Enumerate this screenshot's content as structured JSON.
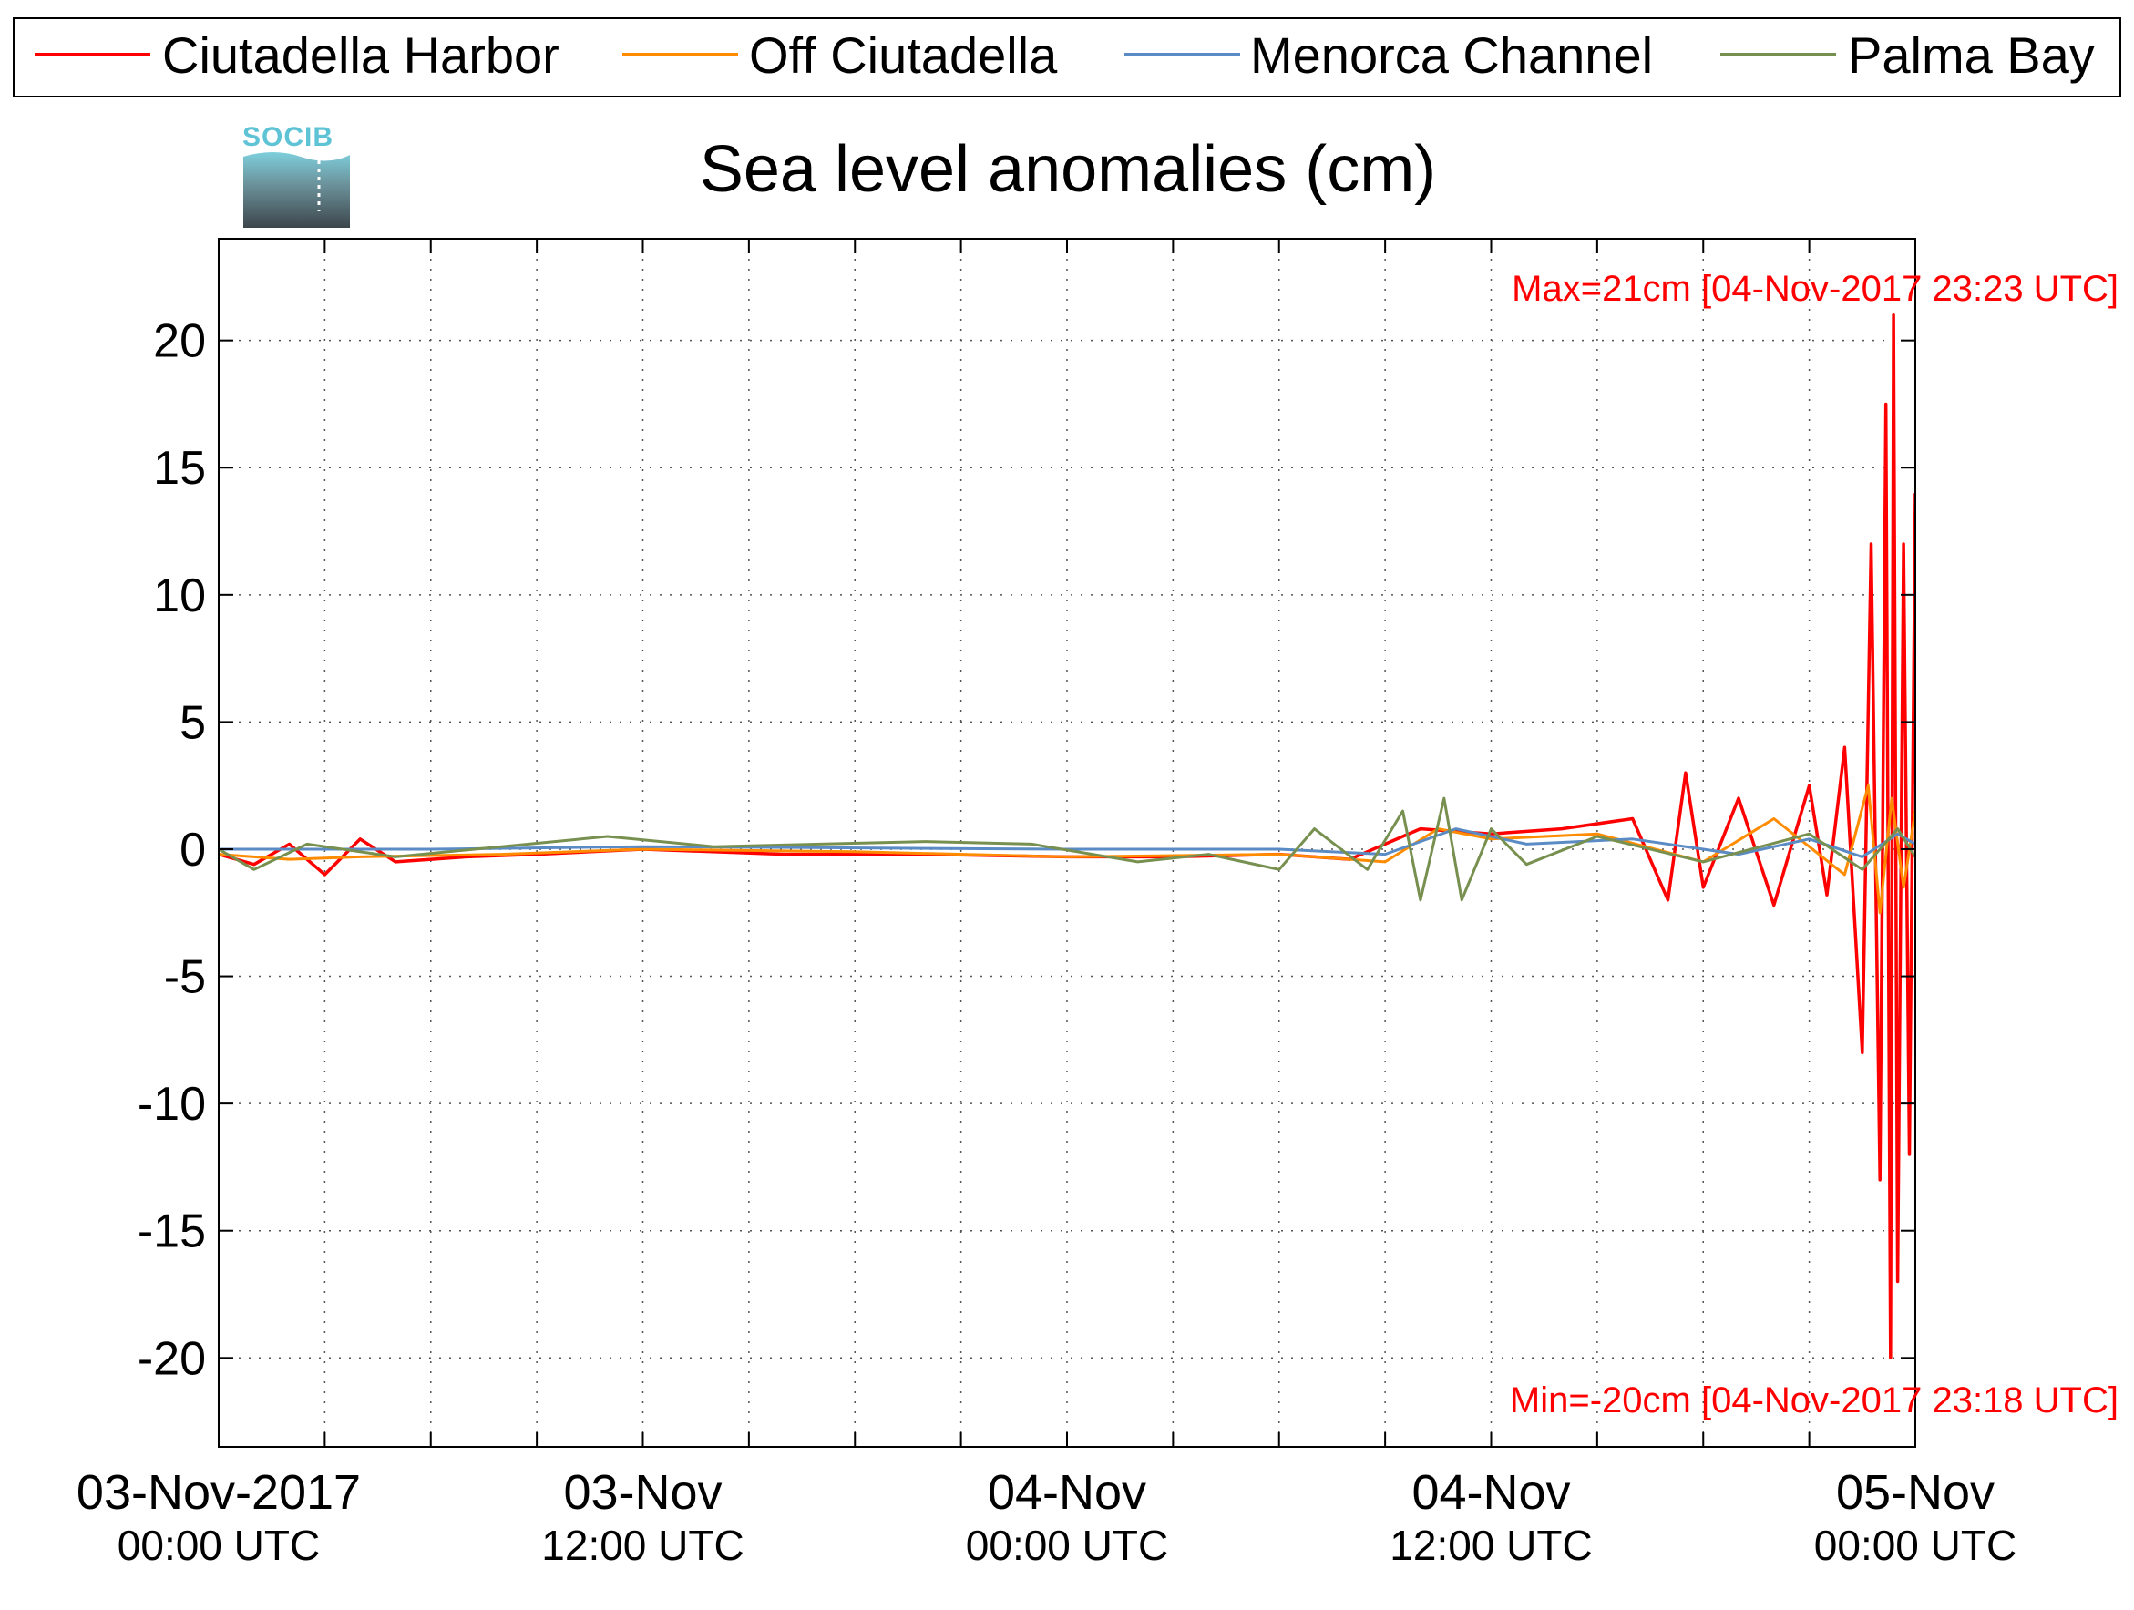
{
  "chart_data": {
    "type": "line",
    "title": "Sea level anomalies (cm)",
    "logo_text": "SOCIB",
    "ylim": [
      -23.5,
      24
    ],
    "xlim": [
      "2017-11-03T00:00Z",
      "2017-11-05T00:00Z"
    ],
    "y_ticks": [
      20,
      15,
      10,
      5,
      0,
      -5,
      -10,
      -15,
      -20
    ],
    "y_tick_labels": [
      "20",
      "15",
      "10",
      "5",
      "0",
      "-5",
      "-10",
      "-15",
      "-20"
    ],
    "x_ticks": [
      {
        "time": "2017-11-03T00:00Z",
        "date_label": "03-Nov-2017",
        "time_label": "00:00 UTC"
      },
      {
        "time": "2017-11-03T12:00Z",
        "date_label": "03-Nov",
        "time_label": "12:00 UTC"
      },
      {
        "time": "2017-11-04T00:00Z",
        "date_label": "04-Nov",
        "time_label": "00:00 UTC"
      },
      {
        "time": "2017-11-04T12:00Z",
        "date_label": "04-Nov",
        "time_label": "12:00 UTC"
      },
      {
        "time": "2017-11-05T00:00Z",
        "date_label": "05-Nov",
        "time_label": "00:00 UTC"
      }
    ],
    "grid": true,
    "legend_placement": "top",
    "annotations": {
      "max": {
        "label": "Max=21cm [04-Nov-2017 23:23 UTC]",
        "value": 21,
        "time": "2017-11-04T23:23Z"
      },
      "min": {
        "label": "Min=-20cm [04-Nov-2017 23:18 UTC]",
        "value": -20,
        "time": "2017-11-04T23:18Z"
      }
    },
    "series": [
      {
        "name": "Ciutadella Harbor",
        "color": "#ff0000",
        "points": [
          [
            "2017-11-03T00:00Z",
            -0.2
          ],
          [
            "2017-11-03T01:00Z",
            -0.6
          ],
          [
            "2017-11-03T02:00Z",
            0.2
          ],
          [
            "2017-11-03T03:00Z",
            -1.0
          ],
          [
            "2017-11-03T04:00Z",
            0.4
          ],
          [
            "2017-11-03T05:00Z",
            -0.5
          ],
          [
            "2017-11-03T07:00Z",
            -0.3
          ],
          [
            "2017-11-03T09:00Z",
            -0.2
          ],
          [
            "2017-11-03T12:00Z",
            0.0
          ],
          [
            "2017-11-03T16:00Z",
            -0.2
          ],
          [
            "2017-11-03T20:00Z",
            -0.2
          ],
          [
            "2017-11-04T00:00Z",
            -0.3
          ],
          [
            "2017-11-04T03:00Z",
            -0.3
          ],
          [
            "2017-11-04T06:00Z",
            -0.2
          ],
          [
            "2017-11-04T08:00Z",
            -0.4
          ],
          [
            "2017-11-04T10:00Z",
            0.8
          ],
          [
            "2017-11-04T12:00Z",
            0.6
          ],
          [
            "2017-11-04T14:00Z",
            0.8
          ],
          [
            "2017-11-04T16:00Z",
            1.2
          ],
          [
            "2017-11-04T17:00Z",
            -2.0
          ],
          [
            "2017-11-04T17:30Z",
            3.0
          ],
          [
            "2017-11-04T18:00Z",
            -1.5
          ],
          [
            "2017-11-04T19:00Z",
            2.0
          ],
          [
            "2017-11-04T20:00Z",
            -2.2
          ],
          [
            "2017-11-04T21:00Z",
            2.5
          ],
          [
            "2017-11-04T21:30Z",
            -1.8
          ],
          [
            "2017-11-04T22:00Z",
            4.0
          ],
          [
            "2017-11-04T22:30Z",
            -8.0
          ],
          [
            "2017-11-04T22:45Z",
            12.0
          ],
          [
            "2017-11-04T23:00Z",
            -13.0
          ],
          [
            "2017-11-04T23:10Z",
            17.5
          ],
          [
            "2017-11-04T23:18Z",
            -20.0
          ],
          [
            "2017-11-04T23:23Z",
            21.0
          ],
          [
            "2017-11-04T23:30Z",
            -17.0
          ],
          [
            "2017-11-04T23:40Z",
            12.0
          ],
          [
            "2017-11-04T23:50Z",
            -12.0
          ],
          [
            "2017-11-05T00:00Z",
            14.0
          ]
        ]
      },
      {
        "name": "Off Ciutadella",
        "color": "#ff8c00",
        "points": [
          [
            "2017-11-03T00:00Z",
            -0.2
          ],
          [
            "2017-11-03T02:00Z",
            -0.4
          ],
          [
            "2017-11-03T04:00Z",
            -0.3
          ],
          [
            "2017-11-03T08:00Z",
            -0.2
          ],
          [
            "2017-11-03T12:00Z",
            0.0
          ],
          [
            "2017-11-03T18:00Z",
            -0.1
          ],
          [
            "2017-11-04T00:00Z",
            -0.3
          ],
          [
            "2017-11-04T06:00Z",
            -0.2
          ],
          [
            "2017-11-04T09:00Z",
            -0.5
          ],
          [
            "2017-11-04T10:30Z",
            0.8
          ],
          [
            "2017-11-04T12:00Z",
            0.4
          ],
          [
            "2017-11-04T15:00Z",
            0.6
          ],
          [
            "2017-11-04T18:00Z",
            -0.5
          ],
          [
            "2017-11-04T20:00Z",
            1.2
          ],
          [
            "2017-11-04T22:00Z",
            -1.0
          ],
          [
            "2017-11-04T22:40Z",
            2.5
          ],
          [
            "2017-11-04T23:00Z",
            -2.5
          ],
          [
            "2017-11-04T23:20Z",
            2.0
          ],
          [
            "2017-11-04T23:40Z",
            -1.5
          ],
          [
            "2017-11-05T00:00Z",
            1.5
          ]
        ]
      },
      {
        "name": "Menorca Channel",
        "color": "#5b8bc4",
        "points": [
          [
            "2017-11-03T00:00Z",
            0.0
          ],
          [
            "2017-11-03T06:00Z",
            0.0
          ],
          [
            "2017-11-03T12:00Z",
            0.1
          ],
          [
            "2017-11-04T00:00Z",
            0.0
          ],
          [
            "2017-11-04T06:00Z",
            0.0
          ],
          [
            "2017-11-04T09:00Z",
            -0.2
          ],
          [
            "2017-11-04T11:00Z",
            0.8
          ],
          [
            "2017-11-04T13:00Z",
            0.2
          ],
          [
            "2017-11-04T16:00Z",
            0.4
          ],
          [
            "2017-11-04T19:00Z",
            -0.2
          ],
          [
            "2017-11-04T21:00Z",
            0.4
          ],
          [
            "2017-11-04T22:30Z",
            -0.3
          ],
          [
            "2017-11-04T23:30Z",
            0.6
          ],
          [
            "2017-11-05T00:00Z",
            0.2
          ]
        ]
      },
      {
        "name": "Palma Bay",
        "color": "#77904f",
        "points": [
          [
            "2017-11-03T00:00Z",
            0.0
          ],
          [
            "2017-11-03T01:00Z",
            -0.8
          ],
          [
            "2017-11-03T02:30Z",
            0.2
          ],
          [
            "2017-11-03T05:00Z",
            -0.3
          ],
          [
            "2017-11-03T08:00Z",
            0.1
          ],
          [
            "2017-11-03T11:00Z",
            0.5
          ],
          [
            "2017-11-03T14:00Z",
            0.1
          ],
          [
            "2017-11-03T17:00Z",
            0.2
          ],
          [
            "2017-11-03T20:00Z",
            0.3
          ],
          [
            "2017-11-03T23:00Z",
            0.2
          ],
          [
            "2017-11-04T02:00Z",
            -0.5
          ],
          [
            "2017-11-04T04:00Z",
            -0.2
          ],
          [
            "2017-11-04T06:00Z",
            -0.8
          ],
          [
            "2017-11-04T07:00Z",
            0.8
          ],
          [
            "2017-11-04T08:30Z",
            -0.8
          ],
          [
            "2017-11-04T09:30Z",
            1.5
          ],
          [
            "2017-11-04T10:00Z",
            -2.0
          ],
          [
            "2017-11-04T10:40Z",
            2.0
          ],
          [
            "2017-11-04T11:10Z",
            -2.0
          ],
          [
            "2017-11-04T12:00Z",
            0.8
          ],
          [
            "2017-11-04T13:00Z",
            -0.6
          ],
          [
            "2017-11-04T15:00Z",
            0.5
          ],
          [
            "2017-11-04T18:00Z",
            -0.5
          ],
          [
            "2017-11-04T21:00Z",
            0.6
          ],
          [
            "2017-11-04T22:30Z",
            -0.8
          ],
          [
            "2017-11-04T23:30Z",
            0.8
          ],
          [
            "2017-11-05T00:00Z",
            -0.3
          ]
        ]
      }
    ]
  }
}
